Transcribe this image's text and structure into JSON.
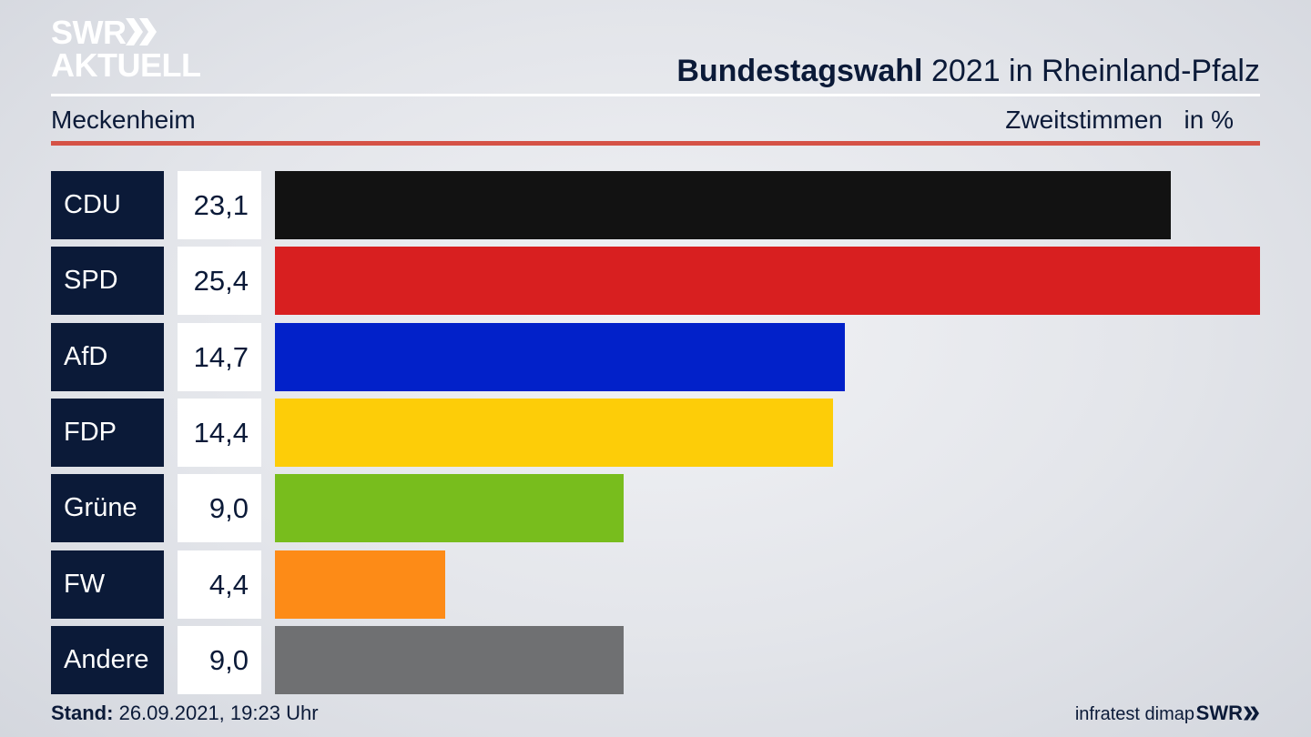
{
  "logo": {
    "line1": "SWR",
    "line2": "AKTUELL"
  },
  "header": {
    "title_bold": "Bundestagswahl",
    "title_rest": "2021 in Rheinland-Pfalz",
    "region": "Meckenheim",
    "vote_type": "Zweitstimmen",
    "unit": "in %"
  },
  "chart_data": {
    "type": "bar",
    "orientation": "horizontal",
    "categories": [
      "CDU",
      "SPD",
      "AfD",
      "FDP",
      "Grüne",
      "FW",
      "Andere"
    ],
    "values": [
      23.1,
      25.4,
      14.7,
      14.4,
      9.0,
      4.4,
      9.0
    ],
    "value_labels": [
      "23,1",
      "25,4",
      "14,7",
      "14,4",
      "9,0",
      "4,4",
      "9,0"
    ],
    "colors": [
      "#121212",
      "#d81f20",
      "#0221c9",
      "#fdcd08",
      "#78bd1d",
      "#fd8b17",
      "#6f7072"
    ],
    "xlim": [
      0,
      25.4
    ],
    "grid": false,
    "legend": "none"
  },
  "footer": {
    "stand_label": "Stand:",
    "stand_value": "26.09.2021, 19:23 Uhr",
    "source": "infratest dimap",
    "brand": "SWR"
  }
}
